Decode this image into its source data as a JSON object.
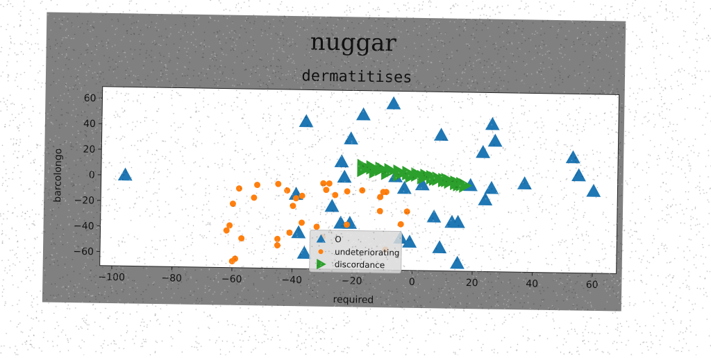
{
  "chart_data": {
    "type": "scatter",
    "title": "nuggar",
    "subtitle": "dermatitises",
    "xlabel": "required",
    "ylabel": "barcolongo",
    "xlim": [
      -104,
      68
    ],
    "ylim": [
      -71,
      69
    ],
    "xticks": [
      -100,
      -80,
      -60,
      -40,
      -20,
      0,
      20,
      40,
      60
    ],
    "yticks": [
      -60,
      -40,
      -20,
      0,
      20,
      40,
      60
    ],
    "grid": false,
    "legend_position": "lower-center",
    "series": [
      {
        "name": "O",
        "marker": "triangle",
        "color": "#1f77b4",
        "points": [
          [
            -96,
            0
          ],
          [
            -36,
            44
          ],
          [
            -17,
            50
          ],
          [
            -7,
            59
          ],
          [
            -21,
            31
          ],
          [
            -24,
            13
          ],
          [
            -23,
            1
          ],
          [
            -39,
            -13
          ],
          [
            -27,
            -22
          ],
          [
            -24,
            -35
          ],
          [
            -21,
            -35
          ],
          [
            -38,
            -43
          ],
          [
            -36,
            -59
          ],
          [
            -6,
            2
          ],
          [
            -3,
            -7
          ],
          [
            3,
            -4
          ],
          [
            7,
            -29
          ],
          [
            9,
            35
          ],
          [
            13,
            -33
          ],
          [
            15,
            -33
          ],
          [
            9,
            -53
          ],
          [
            15,
            -65
          ],
          [
            -4,
            -46
          ],
          [
            -1,
            -49
          ],
          [
            19,
            -4
          ],
          [
            26,
            44
          ],
          [
            27,
            31
          ],
          [
            23,
            22
          ],
          [
            24,
            -15
          ],
          [
            26,
            -6
          ],
          [
            37,
            -2
          ],
          [
            53,
            19
          ],
          [
            55,
            5
          ],
          [
            60,
            -7
          ]
        ]
      },
      {
        "name": "undeteriorating",
        "marker": "circle",
        "color": "#ff7f0e",
        "points": [
          [
            -58,
            -9
          ],
          [
            -52,
            -6
          ],
          [
            -45,
            -5
          ],
          [
            -42,
            -10
          ],
          [
            -39,
            -16
          ],
          [
            -37,
            -14
          ],
          [
            -30,
            -4
          ],
          [
            -28,
            -4
          ],
          [
            -29,
            -9
          ],
          [
            -26,
            -13
          ],
          [
            -22,
            -10
          ],
          [
            -17,
            -9
          ],
          [
            -11,
            -14
          ],
          [
            -10,
            -10
          ],
          [
            -9,
            -10
          ],
          [
            -11,
            -25
          ],
          [
            -4,
            -35
          ],
          [
            -2,
            -25
          ],
          [
            -60,
            -21
          ],
          [
            -53,
            -16
          ],
          [
            -40,
            -22
          ],
          [
            -37,
            -35
          ],
          [
            -41,
            -43
          ],
          [
            -32,
            -38
          ],
          [
            -22,
            -36
          ],
          [
            -62,
            -42
          ],
          [
            -61,
            -38
          ],
          [
            -57,
            -48
          ],
          [
            -45,
            -48
          ],
          [
            -45,
            -53
          ],
          [
            -59,
            -64
          ],
          [
            -60,
            -66
          ],
          [
            -30,
            -46
          ],
          [
            -9,
            -55
          ]
        ]
      },
      {
        "name": "discordance",
        "marker": "triangle-right",
        "color": "#2ca02c",
        "points": [
          [
            -17,
            10
          ],
          [
            -14,
            9
          ],
          [
            -11,
            8
          ],
          [
            -8,
            7
          ],
          [
            -5,
            6
          ],
          [
            -2,
            5
          ],
          [
            1,
            4
          ],
          [
            4,
            3
          ],
          [
            6,
            2
          ],
          [
            8,
            1
          ],
          [
            10,
            0
          ],
          [
            12,
            -1
          ],
          [
            14,
            -2
          ],
          [
            15,
            -3
          ],
          [
            17,
            -4
          ],
          [
            -17,
            7
          ],
          [
            -13,
            6
          ],
          [
            -9,
            5
          ],
          [
            -5,
            4
          ],
          [
            -1,
            3
          ],
          [
            3,
            2
          ],
          [
            7,
            1
          ],
          [
            11,
            0
          ],
          [
            14,
            -2
          ],
          [
            16,
            -3
          ]
        ]
      }
    ]
  }
}
